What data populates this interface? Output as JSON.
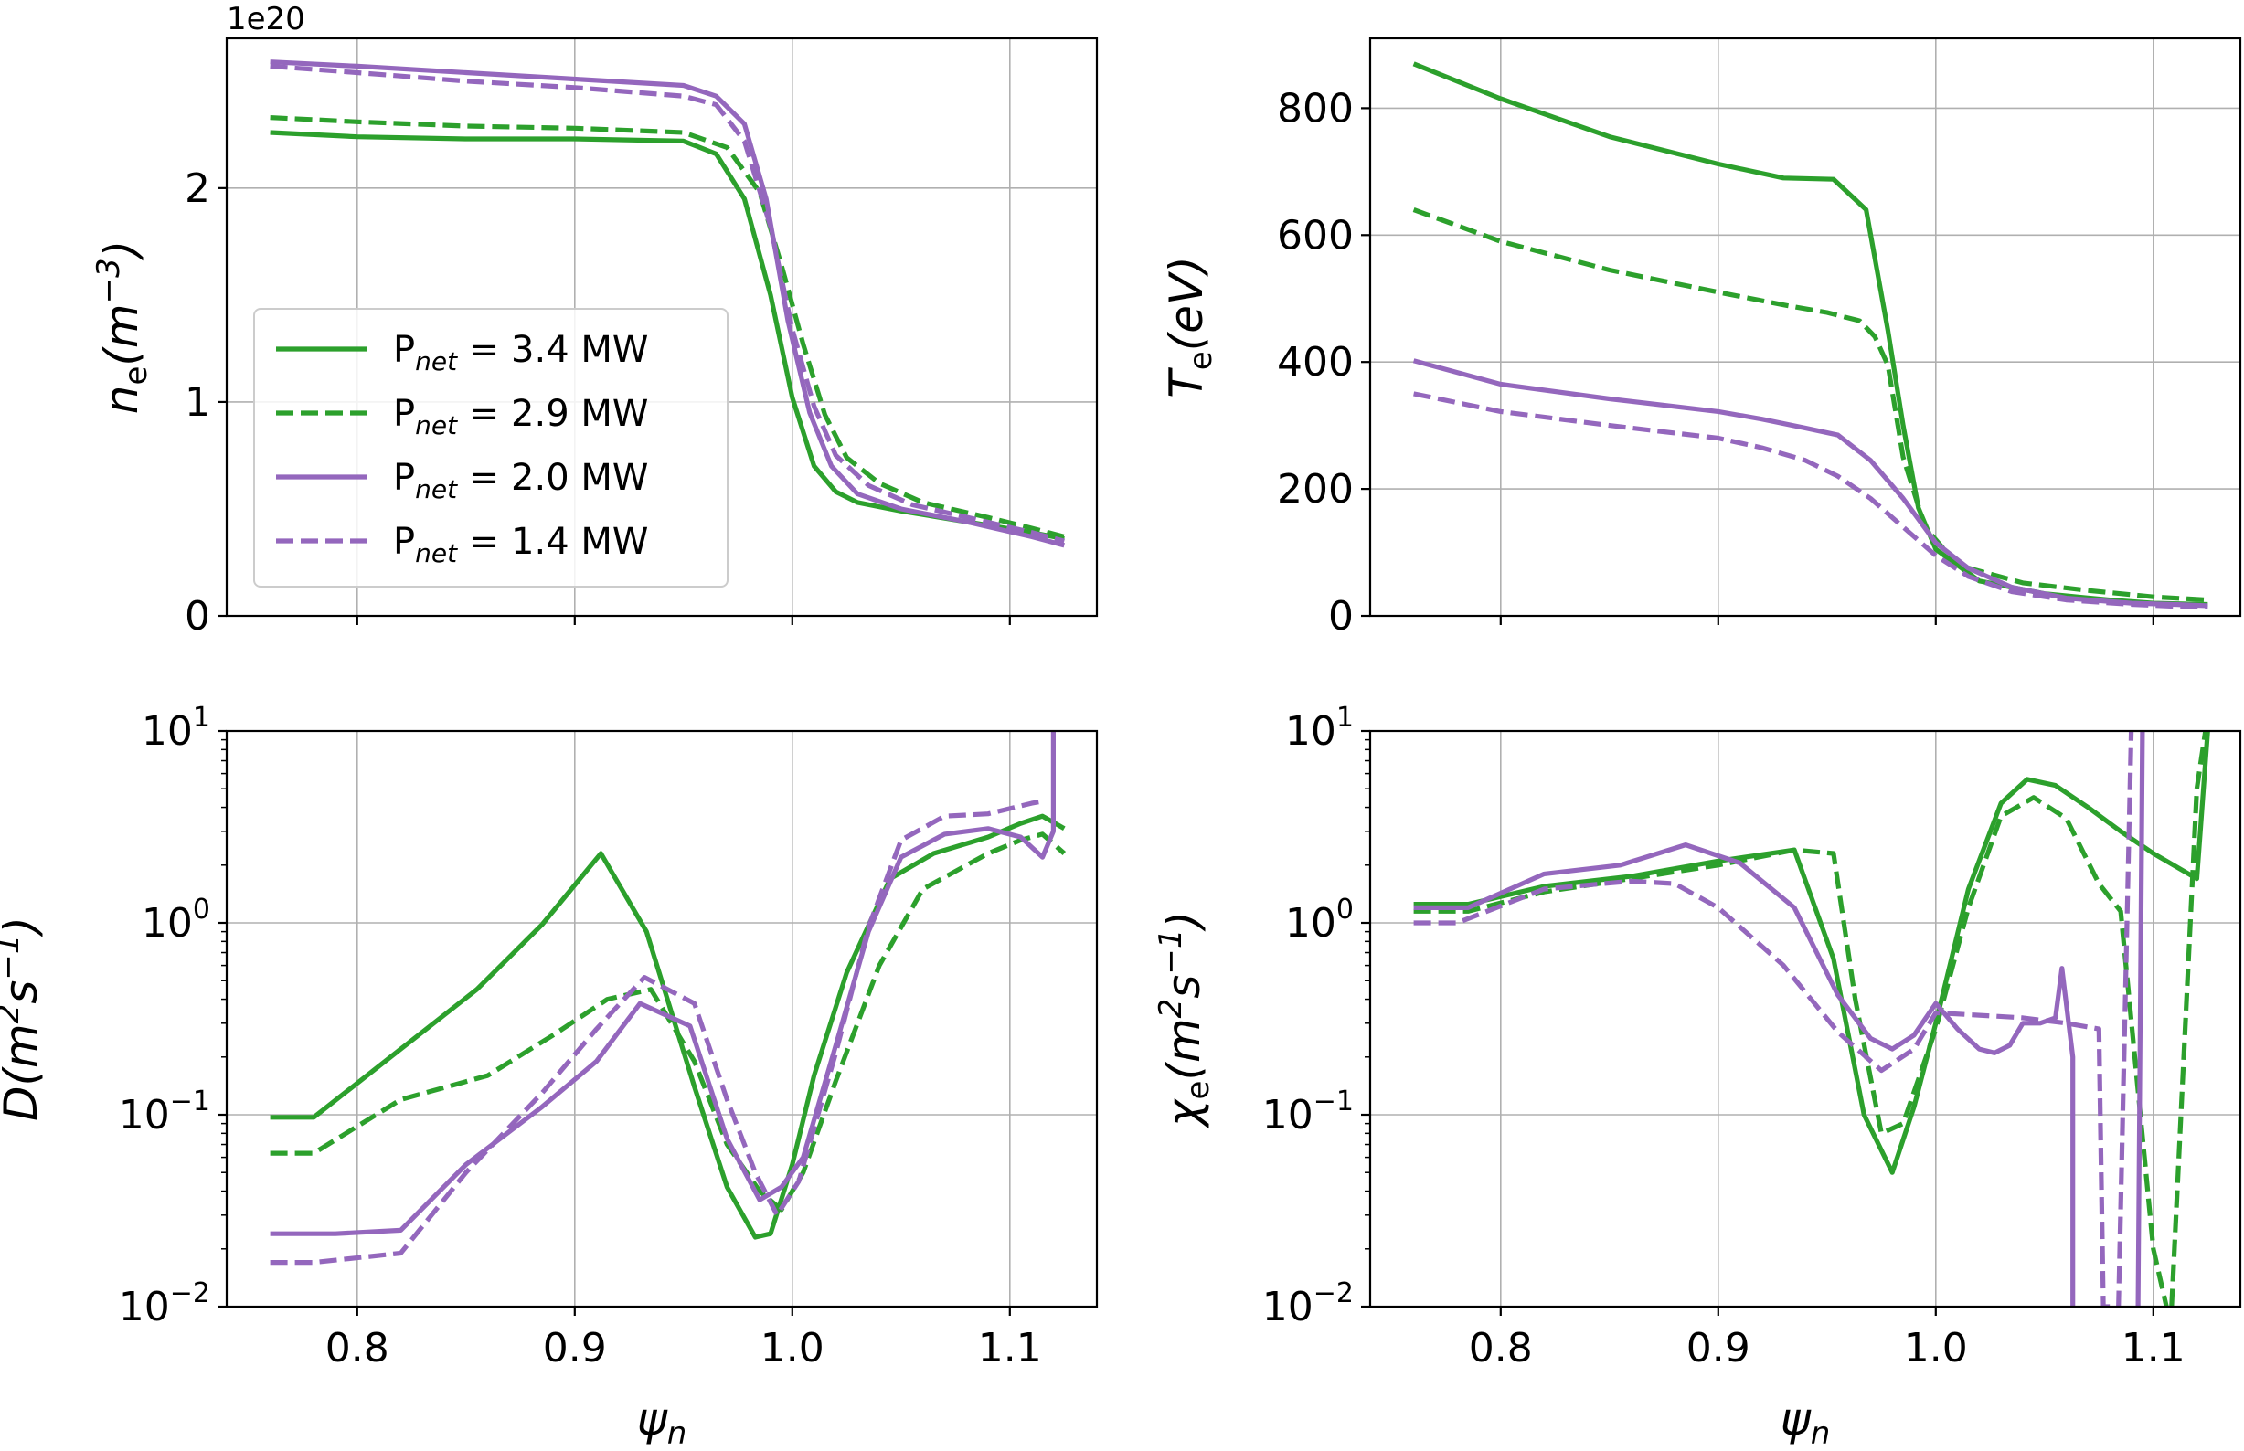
{
  "colors": {
    "green": "#2ca02c",
    "purple": "#9467bd"
  },
  "legend": [
    {
      "prefix": "P",
      "sub": "net",
      "value": " = 3.4 MW",
      "color": "green",
      "dashed": false
    },
    {
      "prefix": "P",
      "sub": "net",
      "value": " = 2.9 MW",
      "color": "green",
      "dashed": true
    },
    {
      "prefix": "P",
      "sub": "net",
      "value": " = 2.0 MW",
      "color": "purple",
      "dashed": false
    },
    {
      "prefix": "P",
      "sub": "net",
      "value": " = 1.4 MW",
      "color": "purple",
      "dashed": true
    }
  ],
  "chart_data": [
    {
      "id": "ne",
      "type": "line",
      "yscale": "linear",
      "ylabel": {
        "main": "n",
        "sub": "e",
        "rest": "(m",
        "sup": "−3",
        "close": ")"
      },
      "offset_text": "1e20",
      "xlim": [
        0.74,
        1.14
      ],
      "ylim": [
        0,
        2.7
      ],
      "xticks": [
        0.8,
        0.9,
        1.0,
        1.1
      ],
      "xtick_labels": [],
      "yticks": [
        0,
        1,
        2
      ],
      "ytick_labels": [
        "0",
        "1",
        "2"
      ],
      "grid": true,
      "legend_position": "center-left",
      "xlabel": "",
      "series": [
        {
          "name": "P_net = 3.4 MW",
          "color": "green",
          "dashed": false,
          "x": [
            0.76,
            0.8,
            0.85,
            0.9,
            0.95,
            0.965,
            0.978,
            0.99,
            1.0,
            1.01,
            1.02,
            1.03,
            1.05,
            1.08,
            1.11,
            1.125
          ],
          "y": [
            2.26,
            2.24,
            2.23,
            2.23,
            2.22,
            2.16,
            1.95,
            1.5,
            1.02,
            0.7,
            0.58,
            0.53,
            0.49,
            0.44,
            0.39,
            0.36
          ]
        },
        {
          "name": "P_net = 2.9 MW",
          "color": "green",
          "dashed": true,
          "x": [
            0.76,
            0.8,
            0.85,
            0.9,
            0.95,
            0.97,
            0.985,
            0.995,
            1.005,
            1.015,
            1.025,
            1.04,
            1.06,
            1.09,
            1.11,
            1.125
          ],
          "y": [
            2.33,
            2.31,
            2.29,
            2.28,
            2.26,
            2.19,
            1.98,
            1.64,
            1.27,
            0.94,
            0.74,
            0.62,
            0.53,
            0.46,
            0.41,
            0.37
          ]
        },
        {
          "name": "P_net = 2.0 MW",
          "color": "purple",
          "dashed": false,
          "x": [
            0.76,
            0.8,
            0.85,
            0.9,
            0.95,
            0.965,
            0.978,
            0.988,
            0.998,
            1.008,
            1.018,
            1.03,
            1.05,
            1.08,
            1.11,
            1.125
          ],
          "y": [
            2.59,
            2.57,
            2.54,
            2.51,
            2.48,
            2.43,
            2.3,
            1.95,
            1.38,
            0.95,
            0.7,
            0.57,
            0.5,
            0.44,
            0.37,
            0.33
          ]
        },
        {
          "name": "P_net = 1.4 MW",
          "color": "purple",
          "dashed": true,
          "x": [
            0.76,
            0.8,
            0.85,
            0.9,
            0.95,
            0.965,
            0.978,
            0.99,
            1.0,
            1.01,
            1.02,
            1.035,
            1.055,
            1.085,
            1.11,
            1.125
          ],
          "y": [
            2.57,
            2.54,
            2.5,
            2.47,
            2.43,
            2.39,
            2.22,
            1.82,
            1.34,
            0.98,
            0.75,
            0.61,
            0.52,
            0.45,
            0.39,
            0.35
          ]
        }
      ]
    },
    {
      "id": "te",
      "type": "line",
      "yscale": "linear",
      "ylabel": {
        "main": "T",
        "sub": "e",
        "rest": "(eV)",
        "sup": "",
        "close": ""
      },
      "offset_text": "",
      "xlim": [
        0.74,
        1.14
      ],
      "ylim": [
        0,
        910
      ],
      "xticks": [
        0.8,
        0.9,
        1.0,
        1.1
      ],
      "xtick_labels": [],
      "yticks": [
        0,
        200,
        400,
        600,
        800
      ],
      "ytick_labels": [
        "0",
        "200",
        "400",
        "600",
        "800"
      ],
      "grid": true,
      "legend_position": "",
      "xlabel": "",
      "series": [
        {
          "name": "P_net = 3.4 MW",
          "color": "green",
          "dashed": false,
          "x": [
            0.76,
            0.8,
            0.85,
            0.9,
            0.93,
            0.953,
            0.968,
            0.978,
            0.985,
            0.992,
            1.0,
            1.02,
            1.05,
            1.08,
            1.1,
            1.125
          ],
          "y": [
            870,
            815,
            755,
            712,
            690,
            688,
            640,
            450,
            300,
            170,
            105,
            55,
            35,
            25,
            20,
            18
          ]
        },
        {
          "name": "P_net = 2.9 MW",
          "color": "green",
          "dashed": true,
          "x": [
            0.76,
            0.8,
            0.85,
            0.9,
            0.93,
            0.95,
            0.965,
            0.972,
            0.978,
            0.985,
            0.995,
            1.01,
            1.04,
            1.07,
            1.1,
            1.125
          ],
          "y": [
            640,
            590,
            545,
            510,
            490,
            478,
            465,
            440,
            395,
            250,
            140,
            80,
            52,
            40,
            30,
            25
          ]
        },
        {
          "name": "P_net = 2.0 MW",
          "color": "purple",
          "dashed": false,
          "x": [
            0.76,
            0.8,
            0.85,
            0.9,
            0.92,
            0.94,
            0.955,
            0.97,
            0.985,
            1.0,
            1.015,
            1.035,
            1.06,
            1.09,
            1.11,
            1.125
          ],
          "y": [
            402,
            365,
            342,
            322,
            310,
            296,
            285,
            245,
            185,
            115,
            75,
            45,
            28,
            20,
            18,
            16
          ]
        },
        {
          "name": "P_net = 1.4 MW",
          "color": "purple",
          "dashed": true,
          "x": [
            0.76,
            0.8,
            0.85,
            0.9,
            0.92,
            0.94,
            0.955,
            0.97,
            0.985,
            1.0,
            1.015,
            1.035,
            1.06,
            1.09,
            1.11,
            1.125
          ],
          "y": [
            350,
            322,
            300,
            280,
            265,
            245,
            220,
            185,
            140,
            95,
            62,
            38,
            25,
            18,
            15,
            14
          ]
        }
      ]
    },
    {
      "id": "d",
      "type": "line",
      "yscale": "log",
      "ylabel": {
        "main": "D",
        "sub": "",
        "rest": "(m",
        "sup": "2",
        "close": "s",
        "sup2": "−1",
        "tail": ")"
      },
      "offset_text": "",
      "xlim": [
        0.74,
        1.14
      ],
      "ylim": [
        0.01,
        10
      ],
      "xticks": [
        0.8,
        0.9,
        1.0,
        1.1
      ],
      "xtick_labels": [
        "0.8",
        "0.9",
        "1.0",
        "1.1"
      ],
      "yticks": [
        0.01,
        0.1,
        1,
        10
      ],
      "ytick_labels": [
        {
          "base": "10",
          "exp": "−2"
        },
        {
          "base": "10",
          "exp": "−1"
        },
        {
          "base": "10",
          "exp": "0"
        },
        {
          "base": "10",
          "exp": "1"
        }
      ],
      "grid": true,
      "legend_position": "",
      "xlabel": "ψ",
      "series": [
        {
          "name": "P_net = 3.4 MW",
          "color": "green",
          "dashed": false,
          "x": [
            0.76,
            0.78,
            0.82,
            0.855,
            0.885,
            0.912,
            0.933,
            0.955,
            0.97,
            0.983,
            0.99,
            1.0,
            1.01,
            1.025,
            1.045,
            1.065,
            1.09,
            1.105,
            1.115,
            1.125
          ],
          "y": [
            0.097,
            0.097,
            0.22,
            0.45,
            0.98,
            2.3,
            0.9,
            0.14,
            0.042,
            0.023,
            0.024,
            0.055,
            0.16,
            0.55,
            1.7,
            2.3,
            2.8,
            3.3,
            3.6,
            3.1
          ]
        },
        {
          "name": "P_net = 2.9 MW",
          "color": "green",
          "dashed": true,
          "x": [
            0.76,
            0.78,
            0.82,
            0.86,
            0.89,
            0.915,
            0.935,
            0.955,
            0.97,
            0.985,
            0.995,
            1.005,
            1.02,
            1.04,
            1.06,
            1.09,
            1.105,
            1.115,
            1.125
          ],
          "y": [
            0.063,
            0.063,
            0.12,
            0.16,
            0.26,
            0.4,
            0.45,
            0.19,
            0.07,
            0.04,
            0.032,
            0.05,
            0.15,
            0.6,
            1.5,
            2.3,
            2.7,
            2.9,
            2.3
          ]
        },
        {
          "name": "P_net = 2.0 MW",
          "color": "purple",
          "dashed": false,
          "x": [
            0.76,
            0.79,
            0.82,
            0.85,
            0.885,
            0.91,
            0.93,
            0.953,
            0.97,
            0.985,
            0.995,
            1.005,
            1.02,
            1.035,
            1.05,
            1.07,
            1.09,
            1.105,
            1.115,
            1.12,
            1.12
          ],
          "y": [
            0.024,
            0.024,
            0.025,
            0.055,
            0.11,
            0.19,
            0.38,
            0.29,
            0.075,
            0.036,
            0.042,
            0.06,
            0.23,
            0.9,
            2.2,
            2.9,
            3.1,
            2.8,
            2.2,
            3.0,
            10
          ]
        },
        {
          "name": "P_net = 1.4 MW",
          "color": "purple",
          "dashed": true,
          "x": [
            0.76,
            0.78,
            0.82,
            0.85,
            0.885,
            0.91,
            0.932,
            0.955,
            0.97,
            0.983,
            0.993,
            1.003,
            1.02,
            1.035,
            1.05,
            1.07,
            1.09,
            1.11,
            1.115
          ],
          "y": [
            0.017,
            0.017,
            0.019,
            0.05,
            0.13,
            0.28,
            0.52,
            0.38,
            0.12,
            0.05,
            0.03,
            0.045,
            0.21,
            0.95,
            2.7,
            3.6,
            3.7,
            4.2,
            4.3
          ]
        }
      ]
    },
    {
      "id": "chi",
      "type": "line",
      "yscale": "log",
      "ylabel": {
        "main": "χ",
        "sub": "e",
        "rest": "(m",
        "sup": "2",
        "close": "s",
        "sup2": "−1",
        "tail": ")"
      },
      "offset_text": "",
      "xlim": [
        0.74,
        1.14
      ],
      "ylim": [
        0.01,
        10
      ],
      "xticks": [
        0.8,
        0.9,
        1.0,
        1.1
      ],
      "xtick_labels": [
        "0.8",
        "0.9",
        "1.0",
        "1.1"
      ],
      "yticks": [
        0.01,
        0.1,
        1,
        10
      ],
      "ytick_labels": [
        {
          "base": "10",
          "exp": "−2"
        },
        {
          "base": "10",
          "exp": "−1"
        },
        {
          "base": "10",
          "exp": "0"
        },
        {
          "base": "10",
          "exp": "1"
        }
      ],
      "grid": true,
      "legend_position": "",
      "xlabel": "ψ",
      "series": [
        {
          "name": "P_net = 3.4 MW",
          "color": "green",
          "dashed": false,
          "x": [
            0.76,
            0.785,
            0.82,
            0.86,
            0.9,
            0.935,
            0.953,
            0.967,
            0.98,
            0.99,
            1.0,
            1.015,
            1.03,
            1.042,
            1.055,
            1.07,
            1.085,
            1.1,
            1.12,
            1.125
          ],
          "y": [
            1.25,
            1.25,
            1.55,
            1.75,
            2.1,
            2.4,
            0.65,
            0.1,
            0.05,
            0.11,
            0.3,
            1.5,
            4.2,
            5.6,
            5.2,
            4.0,
            3.0,
            2.3,
            1.7,
            10
          ]
        },
        {
          "name": "P_net = 2.9 MW",
          "color": "green",
          "dashed": true,
          "x": [
            0.76,
            0.785,
            0.82,
            0.86,
            0.9,
            0.935,
            0.953,
            0.963,
            0.975,
            0.985,
            1.0,
            1.015,
            1.03,
            1.045,
            1.06,
            1.075,
            1.085,
            1.1,
            1.108,
            1.12,
            1.125
          ],
          "y": [
            1.15,
            1.15,
            1.45,
            1.7,
            2.0,
            2.4,
            2.3,
            0.4,
            0.08,
            0.09,
            0.28,
            1.2,
            3.6,
            4.5,
            3.5,
            1.6,
            1.15,
            0.02,
            0.008,
            5.0,
            12
          ]
        },
        {
          "name": "P_net = 2.0 MW",
          "color": "purple",
          "dashed": false,
          "x": [
            0.76,
            0.785,
            0.82,
            0.855,
            0.885,
            0.91,
            0.935,
            0.955,
            0.97,
            0.98,
            0.99,
            1.0,
            1.01,
            1.02,
            1.027,
            1.034,
            1.04,
            1.048,
            1.055,
            1.058,
            1.063,
            1.063,
            1.09,
            1.093,
            1.095
          ],
          "y": [
            1.2,
            1.2,
            1.8,
            2.0,
            2.55,
            2.05,
            1.2,
            0.42,
            0.25,
            0.22,
            0.26,
            0.38,
            0.28,
            0.22,
            0.21,
            0.23,
            0.3,
            0.3,
            0.32,
            0.58,
            0.2,
            0.008,
            0.008,
            0.01,
            10
          ]
        },
        {
          "name": "P_net = 1.4 MW",
          "color": "purple",
          "dashed": true,
          "x": [
            0.76,
            0.78,
            0.82,
            0.86,
            0.88,
            0.9,
            0.93,
            0.955,
            0.975,
            0.99,
            1.0,
            1.02,
            1.04,
            1.06,
            1.075,
            1.077,
            1.084,
            1.09
          ],
          "y": [
            1.0,
            1.0,
            1.5,
            1.65,
            1.6,
            1.2,
            0.6,
            0.27,
            0.17,
            0.22,
            0.34,
            0.33,
            0.32,
            0.3,
            0.28,
            0.01,
            0.01,
            12
          ]
        }
      ]
    }
  ]
}
